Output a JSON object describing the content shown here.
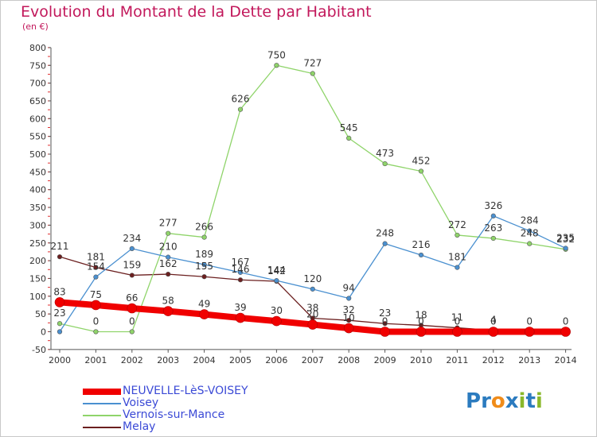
{
  "title": "Evolution du Montant de la Dette par Habitant",
  "unit_label": "(en €)",
  "logo": {
    "text": "Proxiti",
    "letters": [
      "P",
      "r",
      "o",
      "x",
      "i",
      "t",
      "i"
    ],
    "colors": [
      "#2b7bbf",
      "#2b7bbf",
      "#f08c1a",
      "#2b7bbf",
      "#8ab82b",
      "#2b7bbf",
      "#8ab82b"
    ]
  },
  "chart_data": {
    "type": "line",
    "categories": [
      "2000",
      "2001",
      "2002",
      "2003",
      "2004",
      "2005",
      "2006",
      "2007",
      "2008",
      "2009",
      "2010",
      "2011",
      "2012",
      "2013",
      "2014"
    ],
    "yticks": [
      -50,
      0,
      50,
      100,
      150,
      200,
      250,
      300,
      350,
      400,
      450,
      500,
      550,
      600,
      650,
      700,
      750,
      800
    ],
    "ytick_labels": [
      "-50",
      "0",
      "50",
      "100",
      "150",
      "200",
      "250",
      "300",
      "350",
      "400",
      "450",
      "500",
      "550",
      "600",
      "650",
      "700",
      "750",
      "800"
    ],
    "ylim": [
      -50,
      800
    ],
    "grid": false,
    "legend_position": "bottom",
    "series": [
      {
        "name": "Melay",
        "color": "#6b1f1f",
        "width": 1.3,
        "values": [
          211,
          181,
          159,
          162,
          155,
          146,
          142,
          38,
          32,
          23,
          18,
          11,
          4,
          3,
          2
        ],
        "labels": [
          "211",
          "181",
          "159",
          "162",
          "155",
          "146",
          "142",
          "38",
          "32",
          "23",
          "18",
          "11",
          "4",
          "",
          ""
        ]
      },
      {
        "name": "Vernois-sur-Mance",
        "color": "#8fd46a",
        "width": 1.3,
        "values": [
          23,
          0,
          0,
          277,
          266,
          626,
          750,
          727,
          545,
          473,
          452,
          272,
          263,
          248,
          232
        ],
        "labels": [
          "23",
          "0",
          "0",
          "277",
          "266",
          "626",
          "750",
          "727",
          "545",
          "473",
          "452",
          "272",
          "263",
          "248",
          "232"
        ]
      },
      {
        "name": "Voisey",
        "color": "#4a90d0",
        "width": 1.3,
        "values": [
          0,
          154,
          234,
          210,
          189,
          167,
          144,
          120,
          94,
          248,
          216,
          181,
          326,
          284,
          235
        ],
        "labels": [
          "",
          "154",
          "234",
          "210",
          "189",
          "167",
          "144",
          "120",
          "94",
          "248",
          "216",
          "181",
          "326",
          "284",
          "235"
        ]
      },
      {
        "name": "NEUVELLE-LèS-VOISEY",
        "color": "#f00000",
        "width": 8,
        "values": [
          83,
          75,
          66,
          58,
          49,
          39,
          30,
          20,
          10,
          0,
          0,
          0,
          0,
          0,
          0
        ],
        "labels": [
          "83",
          "75",
          "66",
          "58",
          "49",
          "39",
          "30",
          "20",
          "10",
          "0",
          "0",
          "0",
          "0",
          "0",
          "0"
        ]
      }
    ],
    "legend": [
      "NEUVELLE-LèS-VOISEY",
      "Voisey",
      "Vernois-sur-Mance",
      "Melay"
    ],
    "legend_colors": [
      "#f00000",
      "#4a90d0",
      "#8fd46a",
      "#6b1f1f"
    ]
  }
}
